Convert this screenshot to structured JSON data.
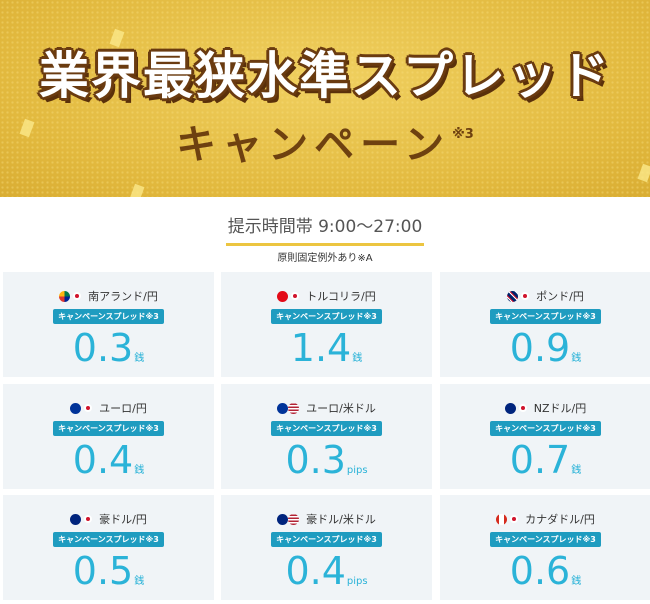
{
  "banner": {
    "title": "業界最狭水準スプレッド",
    "subtitle": "キャンペーン",
    "subtitle_note": "※3"
  },
  "hours": "提示時間帯 9:00〜27:00",
  "note": "原則固定例外あり※A",
  "colors": {
    "banner": "#e2b93e",
    "title_outline": "#6a3b10",
    "value": "#2bb3d8",
    "badge": "#1f9cc0",
    "card": "#f0f4f7"
  },
  "cards": [
    {
      "pair": "南アランド/円",
      "flag": "za",
      "badge": "キャンペーンスプレッド※3",
      "value": "0.3",
      "unit": "銭"
    },
    {
      "pair": "トルコリラ/円",
      "flag": "tr",
      "badge": "キャンペーンスプレッド※3",
      "value": "1.4",
      "unit": "銭"
    },
    {
      "pair": "ポンド/円",
      "flag": "gb",
      "badge": "キャンペーンスプレッド※3",
      "value": "0.9",
      "unit": "銭"
    },
    {
      "pair": "ユーロ/円",
      "flag": "eu",
      "badge": "キャンペーンスプレッド※3",
      "value": "0.4",
      "unit": "銭"
    },
    {
      "pair": "ユーロ/米ドル",
      "flag": "eu-us",
      "badge": "キャンペーンスプレッド※3",
      "value": "0.3",
      "unit": "pips"
    },
    {
      "pair": "NZドル/円",
      "flag": "nz",
      "badge": "キャンペーンスプレッド※3",
      "value": "0.7",
      "unit": "銭"
    },
    {
      "pair": "豪ドル/円",
      "flag": "au",
      "badge": "キャンペーンスプレッド※3",
      "value": "0.5",
      "unit": "銭"
    },
    {
      "pair": "豪ドル/米ドル",
      "flag": "au-us",
      "badge": "キャンペーンスプレッド※3",
      "value": "0.4",
      "unit": "pips"
    },
    {
      "pair": "カナダドル/円",
      "flag": "ca",
      "badge": "キャンペーンスプレッド※3",
      "value": "0.6",
      "unit": "銭"
    }
  ]
}
